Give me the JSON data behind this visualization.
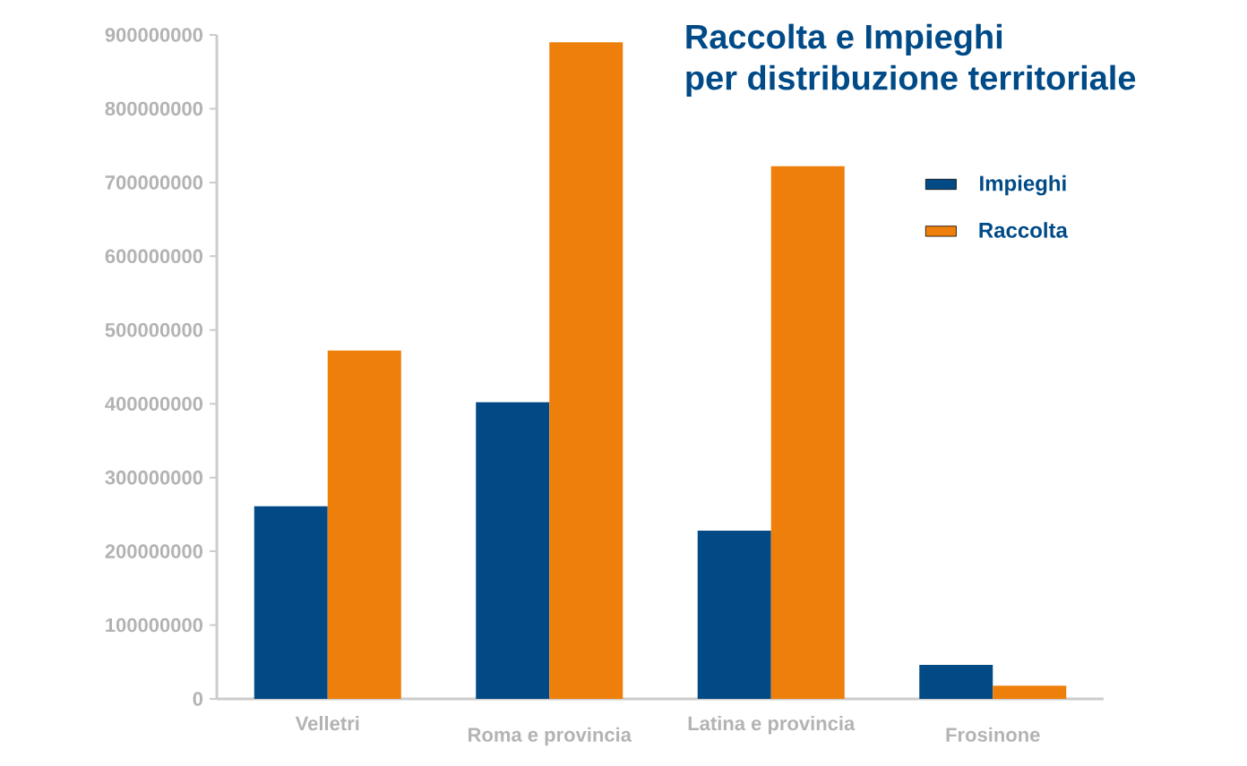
{
  "chart_data": {
    "type": "bar",
    "title": "Raccolta e Impieghi\nper distribuzione territoriale",
    "categories": [
      "Velletri",
      "Roma e provincia",
      "Latina e provincia",
      "Frosinone"
    ],
    "series": [
      {
        "name": "Impieghi",
        "color": "#024a86",
        "values": [
          261000000,
          402000000,
          228000000,
          46000000
        ]
      },
      {
        "name": "Raccolta",
        "color": "#ee7f0a",
        "values": [
          472000000,
          890000000,
          722000000,
          18000000
        ]
      }
    ],
    "ylim": [
      0,
      900000000
    ],
    "yticks": [
      0,
      100000000,
      200000000,
      300000000,
      400000000,
      500000000,
      600000000,
      700000000,
      800000000,
      900000000
    ],
    "grid": false,
    "legend": "top right"
  }
}
